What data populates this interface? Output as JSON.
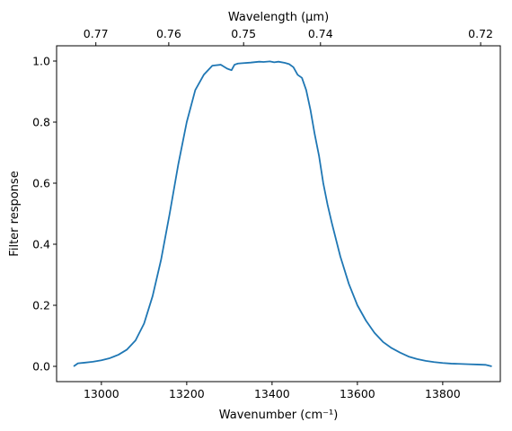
{
  "chart_data": {
    "type": "line",
    "xlabel": "Wavenumber (cm⁻¹)",
    "ylabel": "Filter response",
    "top_xlabel": "Wavelength (μm)",
    "xlim": [
      12895,
      13935
    ],
    "ylim": [
      -0.05,
      1.05
    ],
    "x_ticks": [
      13000,
      13200,
      13400,
      13600,
      13800
    ],
    "y_ticks": [
      0.0,
      0.2,
      0.4,
      0.6,
      0.8,
      1.0
    ],
    "y_tick_labels": [
      "0.0",
      "0.2",
      "0.4",
      "0.6",
      "0.8",
      "1.0"
    ],
    "top_ticks": [
      0.77,
      0.76,
      0.75,
      0.74,
      0.72
    ],
    "top_tick_labels": [
      "0.77",
      "0.76",
      "0.75",
      "0.74",
      "0.72"
    ],
    "grid": false,
    "line_color": "#1f77b4",
    "series": [
      {
        "x": [
          12935,
          12945,
          12960,
          12980,
          13000,
          13020,
          13040,
          13060,
          13080,
          13100,
          13120,
          13140,
          13160,
          13180,
          13200,
          13220,
          13240,
          13260,
          13280,
          13295,
          13305,
          13312,
          13320,
          13330,
          13350,
          13370,
          13380,
          13395,
          13405,
          13415,
          13430,
          13440,
          13450,
          13460,
          13470,
          13480,
          13490,
          13500,
          13510,
          13520,
          13530,
          13540,
          13560,
          13580,
          13600,
          13620,
          13640,
          13660,
          13680,
          13700,
          13720,
          13740,
          13760,
          13780,
          13800,
          13820,
          13840,
          13860,
          13880,
          13900,
          13915
        ],
        "y": [
          0.0,
          0.01,
          0.012,
          0.015,
          0.02,
          0.027,
          0.038,
          0.055,
          0.085,
          0.14,
          0.23,
          0.35,
          0.5,
          0.66,
          0.8,
          0.905,
          0.955,
          0.985,
          0.988,
          0.975,
          0.97,
          0.988,
          0.992,
          0.993,
          0.995,
          0.998,
          0.997,
          0.999,
          0.996,
          0.998,
          0.994,
          0.99,
          0.98,
          0.955,
          0.945,
          0.905,
          0.84,
          0.76,
          0.69,
          0.6,
          0.53,
          0.47,
          0.36,
          0.27,
          0.2,
          0.15,
          0.11,
          0.08,
          0.06,
          0.045,
          0.032,
          0.024,
          0.018,
          0.014,
          0.011,
          0.009,
          0.008,
          0.007,
          0.006,
          0.005,
          0.0
        ]
      }
    ]
  }
}
